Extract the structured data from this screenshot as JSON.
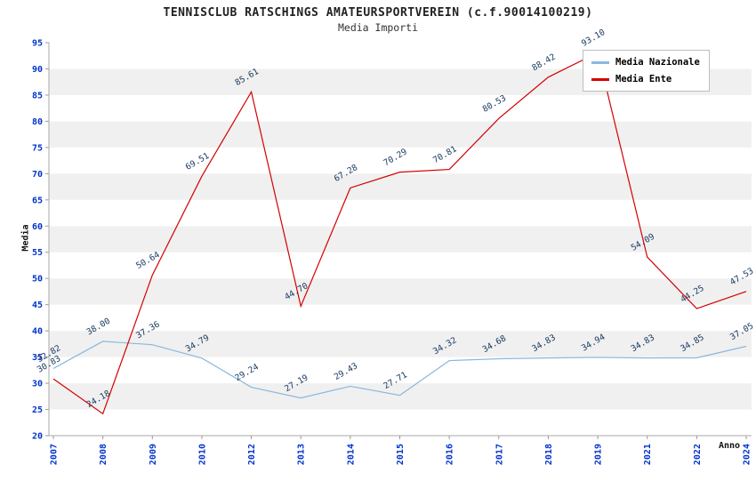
{
  "header": {
    "title": "TENNISCLUB RATSCHINGS AMATEURSPORTVEREIN (c.f.90014100219)",
    "subtitle": "Media Importi"
  },
  "chart_data": {
    "type": "line",
    "title": "TENNISCLUB RATSCHINGS AMATEURSPORTVEREIN (c.f.90014100219)",
    "subtitle": "Media Importi",
    "xlabel": "Anno",
    "ylabel": "Media",
    "ylim": [
      20,
      95
    ],
    "ytick_step": 5,
    "grid": "alternating-horizontal-bands",
    "legend_position": "top-right",
    "band_color": "#f0f0f0",
    "tick_color": "#0033cc",
    "point_label_color": "#17375e",
    "categories": [
      "2007",
      "2008",
      "2009",
      "2010",
      "2012",
      "2013",
      "2014",
      "2015",
      "2016",
      "2017",
      "2018",
      "2019",
      "2021",
      "2022",
      "2024"
    ],
    "series": [
      {
        "name": "Media Nazionale",
        "color": "#8ab8dd",
        "values": [
          32.82,
          38.0,
          37.36,
          34.79,
          29.24,
          27.19,
          29.43,
          27.71,
          34.32,
          34.68,
          34.83,
          34.94,
          34.83,
          34.85,
          37.05
        ]
      },
      {
        "name": "Media Ente",
        "color": "#d40000",
        "values": [
          30.83,
          24.18,
          50.64,
          69.51,
          85.61,
          44.7,
          67.28,
          70.29,
          70.81,
          80.53,
          88.42,
          93.1,
          54.09,
          44.25,
          47.53
        ]
      }
    ]
  }
}
